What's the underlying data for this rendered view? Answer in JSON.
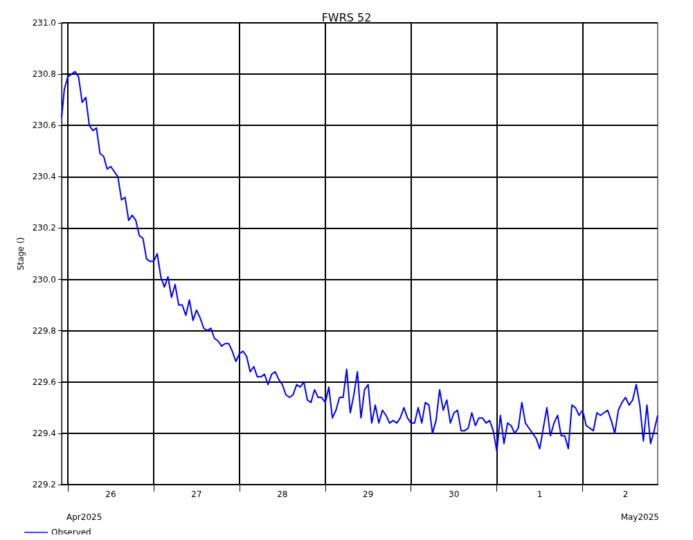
{
  "chart_data": {
    "type": "line",
    "title": "FWRS 52",
    "ylabel": "Stage ()",
    "x": [
      "2025-04-25T22:15",
      "2025-04-25T23:00",
      "2025-04-26T00:00",
      "2025-04-26T02:00",
      "2025-04-26T03:00",
      "2025-04-26T04:00",
      "2025-04-26T05:00",
      "2025-04-26T06:00",
      "2025-04-26T07:00",
      "2025-04-26T08:00",
      "2025-04-26T09:00",
      "2025-04-26T10:00",
      "2025-04-26T11:00",
      "2025-04-26T12:00",
      "2025-04-26T14:00",
      "2025-04-26T15:00",
      "2025-04-26T16:00",
      "2025-04-26T17:00",
      "2025-04-26T18:00",
      "2025-04-26T19:00",
      "2025-04-26T20:00",
      "2025-04-26T21:00",
      "2025-04-26T22:00",
      "2025-04-26T23:00",
      "2025-04-27T00:00",
      "2025-04-27T01:00",
      "2025-04-27T02:00",
      "2025-04-27T03:00",
      "2025-04-27T04:00",
      "2025-04-27T05:00",
      "2025-04-27T06:00",
      "2025-04-27T07:00",
      "2025-04-27T08:00",
      "2025-04-27T09:00",
      "2025-04-27T10:00",
      "2025-04-27T11:00",
      "2025-04-27T12:00",
      "2025-04-27T13:00",
      "2025-04-27T14:00",
      "2025-04-27T15:00",
      "2025-04-27T16:00",
      "2025-04-27T17:00",
      "2025-04-27T18:00",
      "2025-04-27T19:00",
      "2025-04-27T20:00",
      "2025-04-27T21:00",
      "2025-04-27T22:00",
      "2025-04-27T23:00",
      "2025-04-28T00:00",
      "2025-04-28T01:00",
      "2025-04-28T02:00",
      "2025-04-28T03:00",
      "2025-04-28T04:00",
      "2025-04-28T05:00",
      "2025-04-28T06:00",
      "2025-04-28T07:00",
      "2025-04-28T08:00",
      "2025-04-28T09:00",
      "2025-04-28T10:00",
      "2025-04-28T11:00",
      "2025-04-28T12:00",
      "2025-04-28T13:00",
      "2025-04-28T14:00",
      "2025-04-28T15:00",
      "2025-04-28T16:00",
      "2025-04-28T17:00",
      "2025-04-28T18:00",
      "2025-04-28T19:00",
      "2025-04-28T20:00",
      "2025-04-28T21:00",
      "2025-04-28T22:00",
      "2025-04-28T23:00",
      "2025-04-29T00:00",
      "2025-04-29T01:00",
      "2025-04-29T02:00",
      "2025-04-29T03:00",
      "2025-04-29T04:00",
      "2025-04-29T05:00",
      "2025-04-29T06:00",
      "2025-04-29T07:00",
      "2025-04-29T08:00",
      "2025-04-29T09:00",
      "2025-04-29T10:00",
      "2025-04-29T11:00",
      "2025-04-29T12:00",
      "2025-04-29T13:00",
      "2025-04-29T14:00",
      "2025-04-29T15:00",
      "2025-04-29T16:00",
      "2025-04-29T17:00",
      "2025-04-29T18:00",
      "2025-04-29T19:00",
      "2025-04-29T20:00",
      "2025-04-29T21:00",
      "2025-04-29T22:00",
      "2025-04-29T23:00",
      "2025-04-30T00:00",
      "2025-04-30T01:00",
      "2025-04-30T02:00",
      "2025-04-30T03:00",
      "2025-04-30T04:00",
      "2025-04-30T05:00",
      "2025-04-30T06:00",
      "2025-04-30T07:00",
      "2025-04-30T08:00",
      "2025-04-30T09:00",
      "2025-04-30T10:00",
      "2025-04-30T11:00",
      "2025-04-30T12:00",
      "2025-04-30T13:00",
      "2025-04-30T14:00",
      "2025-04-30T15:00",
      "2025-04-30T16:00",
      "2025-04-30T17:00",
      "2025-04-30T18:00",
      "2025-04-30T19:00",
      "2025-04-30T20:00",
      "2025-04-30T21:00",
      "2025-04-30T22:00",
      "2025-04-30T23:00",
      "2025-05-01T00:00",
      "2025-05-01T01:00",
      "2025-05-01T02:00",
      "2025-05-01T03:00",
      "2025-05-01T04:00",
      "2025-05-01T05:00",
      "2025-05-01T06:00",
      "2025-05-01T07:00",
      "2025-05-01T08:00",
      "2025-05-01T09:00",
      "2025-05-01T10:00",
      "2025-05-01T11:00",
      "2025-05-01T12:00",
      "2025-05-01T13:00",
      "2025-05-01T14:00",
      "2025-05-01T15:00",
      "2025-05-01T16:00",
      "2025-05-01T17:00",
      "2025-05-01T18:00",
      "2025-05-01T19:00",
      "2025-05-01T20:00",
      "2025-05-01T21:00",
      "2025-05-01T22:00",
      "2025-05-01T23:00",
      "2025-05-02T00:00",
      "2025-05-02T01:00",
      "2025-05-02T02:00",
      "2025-05-02T03:00",
      "2025-05-02T04:00",
      "2025-05-02T05:00",
      "2025-05-02T06:00",
      "2025-05-02T07:00",
      "2025-05-02T08:00",
      "2025-05-02T09:00",
      "2025-05-02T10:00",
      "2025-05-02T11:00",
      "2025-05-02T12:00",
      "2025-05-02T13:00",
      "2025-05-02T14:00",
      "2025-05-02T15:00",
      "2025-05-02T16:00",
      "2025-05-02T17:00",
      "2025-05-02T18:00",
      "2025-05-02T19:00",
      "2025-05-02T20:00",
      "2025-05-02T21:00"
    ],
    "series": [
      {
        "name": "Observed",
        "color": "#0000ff",
        "values": [
          230.63,
          230.74,
          230.79,
          230.81,
          230.79,
          230.69,
          230.71,
          230.6,
          230.58,
          230.59,
          230.49,
          230.48,
          230.43,
          230.44,
          230.4,
          230.31,
          230.32,
          230.23,
          230.25,
          230.23,
          230.17,
          230.16,
          230.08,
          230.07,
          230.07,
          230.1,
          230.01,
          229.97,
          230.01,
          229.93,
          229.98,
          229.9,
          229.9,
          229.86,
          229.92,
          229.84,
          229.88,
          229.85,
          229.81,
          229.8,
          229.81,
          229.77,
          229.76,
          229.74,
          229.75,
          229.75,
          229.72,
          229.68,
          229.71,
          229.72,
          229.7,
          229.64,
          229.66,
          229.62,
          229.62,
          229.63,
          229.59,
          229.63,
          229.64,
          229.61,
          229.59,
          229.55,
          229.54,
          229.55,
          229.59,
          229.58,
          229.6,
          229.53,
          229.52,
          229.57,
          229.54,
          229.54,
          229.52,
          229.58,
          229.46,
          229.49,
          229.54,
          229.54,
          229.65,
          229.48,
          229.55,
          229.64,
          229.46,
          229.57,
          229.59,
          229.44,
          229.51,
          229.44,
          229.49,
          229.47,
          229.44,
          229.45,
          229.44,
          229.46,
          229.5,
          229.46,
          229.44,
          229.44,
          229.5,
          229.44,
          229.52,
          229.51,
          229.4,
          229.45,
          229.57,
          229.49,
          229.53,
          229.44,
          229.48,
          229.49,
          229.41,
          229.41,
          229.42,
          229.48,
          229.43,
          229.46,
          229.46,
          229.44,
          229.45,
          229.41,
          229.33,
          229.47,
          229.36,
          229.44,
          229.43,
          229.4,
          229.42,
          229.52,
          229.44,
          229.42,
          229.4,
          229.38,
          229.34,
          229.42,
          229.5,
          229.39,
          229.44,
          229.47,
          229.39,
          229.39,
          229.34,
          229.51,
          229.5,
          229.47,
          229.49,
          229.43,
          229.42,
          229.41,
          229.48,
          229.47,
          229.48,
          229.49,
          229.45,
          229.4,
          229.49,
          229.52,
          229.54,
          229.51,
          229.53,
          229.59,
          229.51,
          229.37,
          229.51,
          229.36,
          229.41,
          229.47
        ]
      }
    ],
    "xlim": [
      "2025-04-25T22:15",
      "2025-05-02T21:00"
    ],
    "xticks": [
      {
        "value": "2025-04-26T00:00",
        "label": null
      },
      {
        "value": "2025-04-26T12:00",
        "label": "26"
      },
      {
        "value": "2025-04-27T00:00",
        "label": null
      },
      {
        "value": "2025-04-27T12:00",
        "label": "27"
      },
      {
        "value": "2025-04-28T00:00",
        "label": null
      },
      {
        "value": "2025-04-28T12:00",
        "label": "28"
      },
      {
        "value": "2025-04-29T00:00",
        "label": null
      },
      {
        "value": "2025-04-29T12:00",
        "label": "29"
      },
      {
        "value": "2025-04-30T00:00",
        "label": null
      },
      {
        "value": "2025-04-30T12:00",
        "label": "30"
      },
      {
        "value": "2025-05-01T00:00",
        "label": null
      },
      {
        "value": "2025-05-01T12:00",
        "label": "1"
      },
      {
        "value": "2025-05-02T00:00",
        "label": null
      },
      {
        "value": "2025-05-02T12:00",
        "label": "2"
      }
    ],
    "ylim": [
      229.2,
      231.0
    ],
    "yticks": [
      {
        "value": 229.2,
        "label": "229.2"
      },
      {
        "value": 229.4,
        "label": "229.4"
      },
      {
        "value": 229.6,
        "label": "229.6"
      },
      {
        "value": 229.8,
        "label": "229.8"
      },
      {
        "value": 230.0,
        "label": "230.0"
      },
      {
        "value": 230.2,
        "label": "230.2"
      },
      {
        "value": 230.4,
        "label": "230.4"
      },
      {
        "value": 230.6,
        "label": "230.6"
      },
      {
        "value": 230.8,
        "label": "230.8"
      },
      {
        "value": 231.0,
        "label": "231.0"
      }
    ],
    "annotations": [
      "Apr2025",
      "May2025"
    ],
    "grid": true,
    "legend": "bottom left",
    "marker": "none",
    "line_style": "solid"
  }
}
